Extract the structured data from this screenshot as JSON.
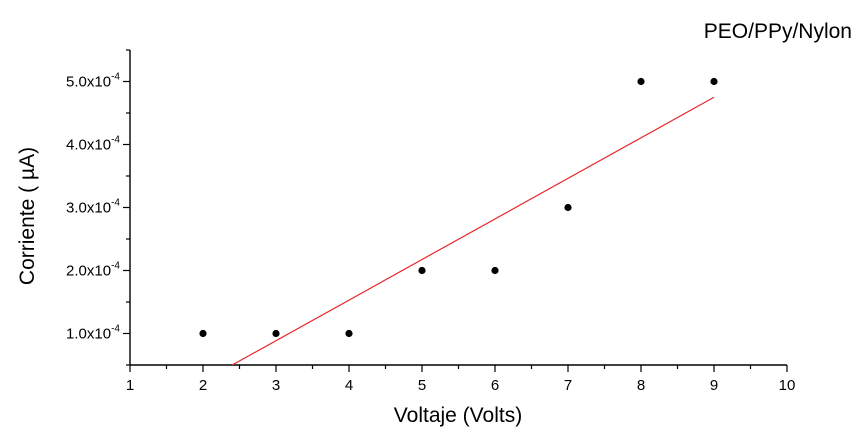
{
  "chart_data": {
    "type": "scatter",
    "title": "PEO/PPy/Nylon",
    "xlabel": "Voltaje (Volts)",
    "ylabel": "Corriente ( µA)",
    "xlim": [
      1,
      10
    ],
    "ylim": [
      5e-05,
      0.00055
    ],
    "x_ticks": [
      1,
      2,
      3,
      4,
      5,
      6,
      7,
      8,
      9,
      10
    ],
    "y_ticks": [
      {
        "value": 0.0001,
        "mantissa": "1.0x10",
        "exponent": "-4"
      },
      {
        "value": 0.0002,
        "mantissa": "2.0x10",
        "exponent": "-4"
      },
      {
        "value": 0.0003,
        "mantissa": "3.0x10",
        "exponent": "-4"
      },
      {
        "value": 0.0004,
        "mantissa": "4.0x10",
        "exponent": "-4"
      },
      {
        "value": 0.0005,
        "mantissa": "5.0x10",
        "exponent": "-4"
      }
    ],
    "series": [
      {
        "x": [
          2,
          3,
          4,
          5,
          6,
          7,
          8,
          9
        ],
        "y": [
          0.0001,
          0.0001,
          0.0001,
          0.0002,
          0.0002,
          0.0003,
          0.0005,
          0.0005
        ],
        "color": "#000000",
        "marker": "dot"
      }
    ],
    "fit_line": {
      "points": [
        [
          2.4,
          5e-05
        ],
        [
          9.0,
          0.000475
        ]
      ],
      "color": "#e8282a"
    },
    "grid": false,
    "legend": "none"
  }
}
